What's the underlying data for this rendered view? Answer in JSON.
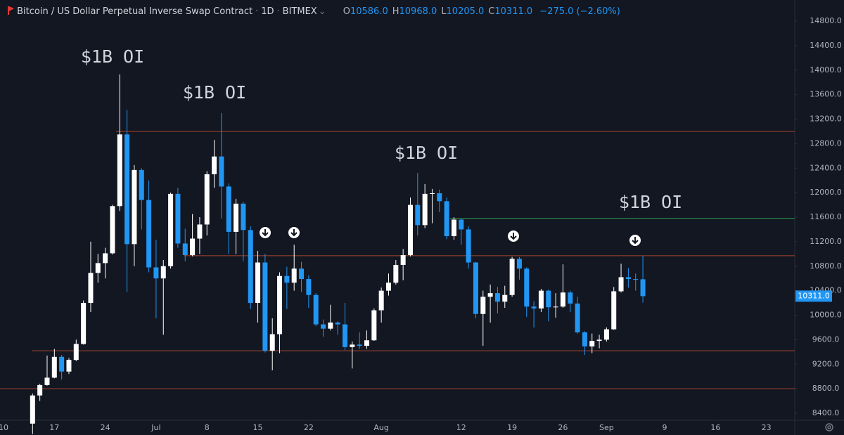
{
  "chart_data": {
    "type": "candlestick",
    "symbol": "Bitcoin / US Dollar Perpetual Inverse Swap Contract",
    "interval": "1D",
    "exchange": "BITMEX",
    "ohlc_header": [
      {
        "label": "O",
        "value": "10586.0"
      },
      {
        "label": "H",
        "value": "10968.0"
      },
      {
        "label": "L",
        "value": "10205.0"
      },
      {
        "label": "C",
        "value": "10311.0"
      }
    ],
    "change": "−275.0 (−2.60%)",
    "categories": [
      "10",
      null,
      null,
      null,
      null,
      null,
      null,
      "17",
      null,
      null,
      null,
      null,
      null,
      null,
      "24",
      null,
      null,
      null,
      null,
      null,
      null,
      "Jul",
      null,
      null,
      null,
      null,
      null,
      null,
      "8",
      null,
      null,
      null,
      null,
      null,
      null,
      "15",
      null,
      null,
      null,
      null,
      null,
      null,
      "22",
      null,
      null,
      null,
      null,
      null,
      null,
      null,
      null,
      null,
      "Aug",
      null,
      null,
      null,
      null,
      null,
      null,
      null,
      null,
      null,
      null,
      "12",
      null,
      null,
      null,
      null,
      null,
      null,
      "19",
      null,
      null,
      null,
      null,
      null,
      null,
      "26",
      null,
      null,
      null,
      null,
      null,
      "Sep",
      null,
      null,
      null,
      null,
      null,
      null,
      null,
      "9",
      null,
      null,
      null,
      null,
      null,
      null,
      "16",
      null,
      null,
      null,
      null,
      null,
      null,
      "23",
      null,
      null,
      null
    ],
    "open": [
      null,
      null,
      null,
      null,
      8230,
      8690,
      8860,
      8980,
      9320,
      9080,
      9270,
      9530,
      10200,
      10690,
      10850,
      11010,
      11780,
      12950,
      11160,
      12370,
      11880,
      10780,
      10600,
      10800,
      11980,
      11170,
      10980,
      11250,
      11480,
      12300,
      12590,
      12100,
      11360,
      11820,
      11390,
      10200,
      10860,
      9420,
      9690,
      10640,
      10530,
      10760,
      10590,
      10330,
      9850,
      9780,
      9880,
      9850,
      9480,
      9520,
      9500,
      9590,
      10080,
      10400,
      10530,
      10820,
      10980,
      11800,
      11470,
      11980,
      11990,
      11860,
      11290,
      11560,
      11400,
      10860,
      10020,
      10300,
      10360,
      10220,
      10330,
      10920,
      10760,
      10140,
      10110,
      10400,
      10130,
      10140,
      10370,
      10190,
      9720,
      9490,
      9580,
      9600,
      9770,
      10390,
      10620,
      10590,
      10586,
      null,
      null,
      null,
      null,
      null,
      null,
      null,
      null,
      null,
      null,
      null,
      null,
      null,
      null,
      null,
      null,
      null,
      null,
      null,
      null
    ],
    "high": [
      null,
      null,
      null,
      null,
      8720,
      8880,
      9340,
      9450,
      9350,
      9300,
      9600,
      10240,
      11200,
      11000,
      11100,
      11800,
      13930,
      13350,
      12450,
      12400,
      12200,
      11230,
      10900,
      12000,
      12080,
      11410,
      11650,
      11600,
      12350,
      12860,
      13300,
      12150,
      11900,
      11850,
      11450,
      11050,
      11000,
      9950,
      10700,
      10790,
      11150,
      10870,
      10650,
      10360,
      9930,
      10170,
      9900,
      10200,
      9570,
      9720,
      9750,
      10110,
      10450,
      10680,
      10900,
      11080,
      11920,
      12320,
      12140,
      12060,
      12050,
      11920,
      11600,
      11570,
      11450,
      10870,
      10400,
      10500,
      10460,
      10480,
      10950,
      10950,
      10780,
      10230,
      10430,
      10420,
      10360,
      10830,
      10400,
      10300,
      9740,
      9700,
      9680,
      9800,
      10460,
      10840,
      10770,
      10680,
      10968,
      null,
      null,
      null,
      null,
      null,
      null,
      null,
      null,
      null,
      null,
      null,
      null,
      null,
      null,
      null,
      null,
      null,
      null,
      null,
      null
    ],
    "low": [
      null,
      null,
      null,
      null,
      8060,
      8600,
      8850,
      8970,
      8950,
      9040,
      9250,
      9520,
      10050,
      10530,
      10600,
      10990,
      11700,
      10380,
      10800,
      11400,
      10700,
      9950,
      9680,
      10760,
      11100,
      10880,
      10960,
      11000,
      11300,
      12080,
      11580,
      11000,
      11000,
      10880,
      10100,
      9880,
      9390,
      9100,
      9380,
      10100,
      10400,
      10380,
      10120,
      9820,
      9650,
      9750,
      9680,
      9430,
      9130,
      9450,
      9450,
      9580,
      9880,
      10320,
      10500,
      10570,
      10960,
      11300,
      11420,
      11500,
      11680,
      11240,
      11230,
      11150,
      10760,
      9950,
      9500,
      9880,
      10030,
      10120,
      10300,
      10580,
      9970,
      9800,
      10050,
      9900,
      9960,
      10120,
      10050,
      9700,
      9350,
      9380,
      9460,
      9570,
      9760,
      10370,
      10450,
      10400,
      10205,
      null,
      null,
      null,
      null,
      null,
      null,
      null,
      null,
      null,
      null,
      null,
      null,
      null,
      null,
      null,
      null,
      null,
      null,
      null,
      null
    ],
    "close": [
      null,
      null,
      null,
      null,
      8690,
      8860,
      8980,
      9320,
      9080,
      9270,
      9530,
      10200,
      10690,
      10850,
      11010,
      11780,
      12950,
      11160,
      12370,
      11880,
      10780,
      10600,
      10800,
      11980,
      11170,
      10980,
      11250,
      11480,
      12300,
      12590,
      12100,
      11360,
      11820,
      11390,
      10200,
      10860,
      9420,
      9690,
      10640,
      10530,
      10760,
      10590,
      10330,
      9850,
      9780,
      9880,
      9850,
      9480,
      9520,
      9500,
      9590,
      10080,
      10400,
      10530,
      10820,
      10980,
      11800,
      11470,
      11980,
      11990,
      11860,
      11290,
      11560,
      11400,
      10860,
      10020,
      10300,
      10360,
      10220,
      10330,
      10920,
      10760,
      10140,
      10110,
      10400,
      10130,
      10140,
      10370,
      10190,
      9720,
      9490,
      9580,
      9600,
      9770,
      10390,
      10620,
      10590,
      10586,
      10311,
      null,
      null,
      null,
      null,
      null,
      null,
      null,
      null,
      null,
      null,
      null,
      null,
      null,
      null,
      null,
      null,
      null,
      null,
      null,
      null
    ],
    "up_color": "#ffffff",
    "down_color": "#2196f3",
    "ylim": [
      8400,
      14800
    ],
    "yticks": [
      {
        "value": 8400,
        "label": "8400.0"
      },
      {
        "value": 8800,
        "label": "8800.0"
      },
      {
        "value": 9200,
        "label": "9200.0"
      },
      {
        "value": 9600,
        "label": "9600.0"
      },
      {
        "value": 10000,
        "label": "10000.0"
      },
      {
        "value": 10400,
        "label": "10400.0"
      },
      {
        "value": 10800,
        "label": "10800.0"
      },
      {
        "value": 11200,
        "label": "11200.0"
      },
      {
        "value": 11600,
        "label": "11600.0"
      },
      {
        "value": 12000,
        "label": "12000.0"
      },
      {
        "value": 12400,
        "label": "12400.0"
      },
      {
        "value": 12800,
        "label": "12800.0"
      },
      {
        "value": 13200,
        "label": "13200.0"
      },
      {
        "value": 13600,
        "label": "13600.0"
      },
      {
        "value": 14000,
        "label": "14000.0"
      },
      {
        "value": 14400,
        "label": "14400.0"
      },
      {
        "value": 14800,
        "label": "14800.0"
      }
    ],
    "last_price": {
      "value": 10311,
      "label": "10311.0"
    },
    "hlines": [
      {
        "value": 13000,
        "color": "#a8452c"
      },
      {
        "value": 10970,
        "color": "#a8452c"
      },
      {
        "value": 9420,
        "color": "#a8452c"
      },
      {
        "value": 8800,
        "color": "#a8452c"
      },
      {
        "value": 11580,
        "color": "#2e9b4e"
      }
    ],
    "annotations": [
      "$1B OI",
      "$1B OI",
      "$1B OI",
      "$1B OI"
    ],
    "grid": false
  }
}
